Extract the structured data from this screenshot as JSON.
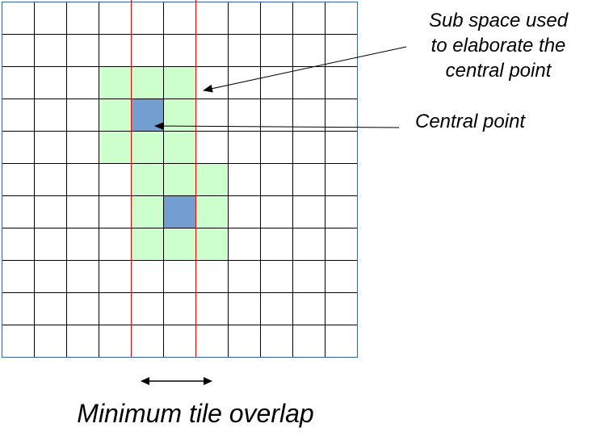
{
  "annotations": {
    "subspace_line1": "Sub space used",
    "subspace_line2": "to elaborate the",
    "subspace_line3": "central point",
    "central_point": "Central point",
    "overlap": "Minimum tile overlap"
  },
  "grid": {
    "columns": 11,
    "rows": 11,
    "subspaces": [
      {
        "col": 3,
        "row": 2,
        "width": 3,
        "height": 3
      },
      {
        "col": 4,
        "row": 5,
        "width": 3,
        "height": 3
      }
    ],
    "central_points": [
      {
        "col": 4,
        "row": 3
      },
      {
        "col": 5,
        "row": 6
      }
    ],
    "overlap_boundaries": [
      4,
      6
    ]
  },
  "colors": {
    "subspace_fill": "#ccffcc",
    "central_point_fill": "#729fcf",
    "grid_line": "#000000",
    "grid_border": "#3465a4",
    "overlap_line": "#ff0000"
  }
}
